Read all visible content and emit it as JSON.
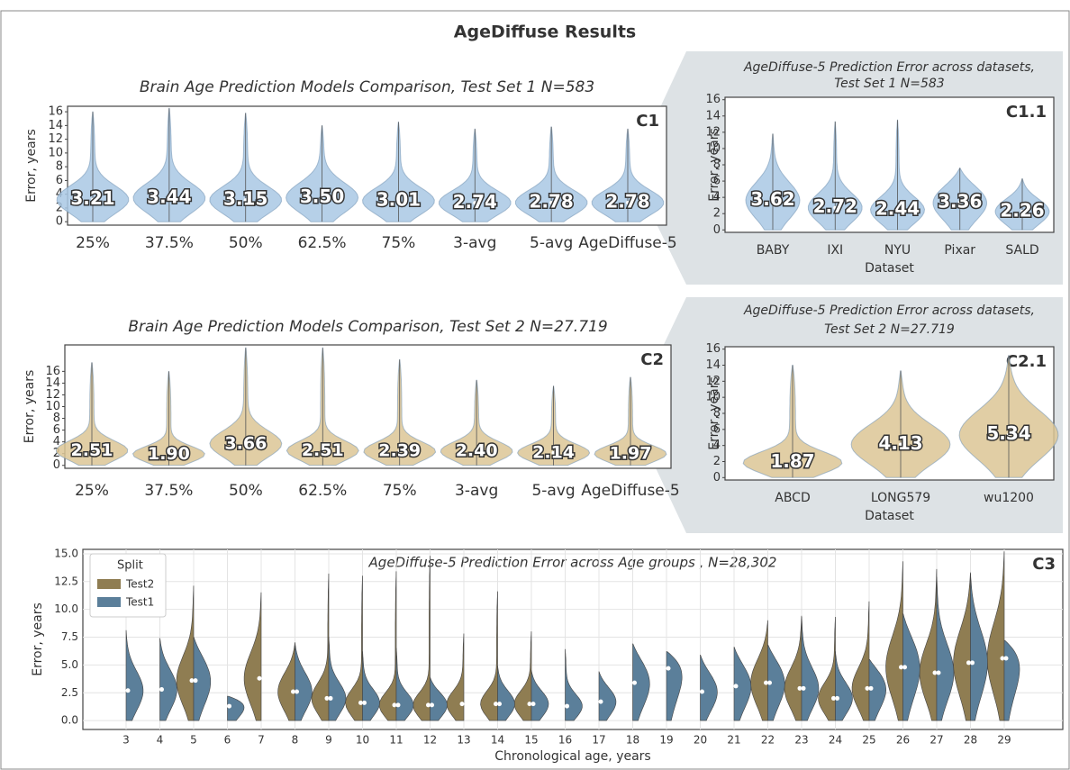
{
  "figure_title": "AgeDiffuse Results",
  "chart_data": [
    {
      "type": "violin",
      "panel": "C1",
      "title": [
        "Brain Age Prediction Models Comparison, Test Set 1 N=583"
      ],
      "ylabel": "Error, years",
      "categories": [
        "25%",
        "37.5%",
        "50%",
        "62.5%",
        "75%",
        "3-avg",
        "5-avg",
        "AgeDiffuse-5"
      ],
      "series": [
        {
          "color": "#a9c8e4",
          "values": [
            3.21,
            3.44,
            3.15,
            3.5,
            3.01,
            2.74,
            2.78,
            2.78
          ],
          "value_labels": [
            "3.21",
            "3.44",
            "3.15",
            "3.50",
            "3.01",
            "2.74",
            "2.78",
            "2.78"
          ],
          "max": [
            16,
            16.5,
            15.8,
            14,
            14.5,
            13.5,
            13.8,
            13.5
          ]
        }
      ],
      "ylim": [
        -0.5,
        16.8
      ],
      "yticks": [
        0,
        2,
        4,
        6,
        8,
        10,
        12,
        14,
        16
      ],
      "grid": false
    },
    {
      "type": "violin",
      "panel": "C1.1",
      "title": [
        "AgeDiffuse-5 Prediction Error across datasets,",
        "Test Set 1 N=583"
      ],
      "ylabel": "Error, years",
      "xlabel": "Dataset",
      "categories": [
        "BABY",
        "IXI",
        "NYU",
        "Pixar",
        "SALD"
      ],
      "series": [
        {
          "color": "#a9c8e4",
          "values": [
            3.62,
            2.72,
            2.44,
            3.36,
            2.26
          ],
          "value_labels": [
            "3.62",
            "2.72",
            "2.44",
            "3.36",
            "2.26"
          ],
          "max": [
            11.8,
            13.3,
            13.5,
            7.6,
            6.3
          ]
        }
      ],
      "ylim": [
        -0.3,
        16.3
      ],
      "yticks": [
        0,
        2,
        4,
        6,
        8,
        10,
        12,
        14,
        16
      ],
      "grid": false
    },
    {
      "type": "violin",
      "panel": "C2",
      "title": [
        "Brain Age Prediction Models Comparison, Test Set 2 N=27.719"
      ],
      "ylabel": "Error, years",
      "categories": [
        "25%",
        "37.5%",
        "50%",
        "62.5%",
        "75%",
        "3-avg",
        "5-avg",
        "AgeDiffuse-5"
      ],
      "series": [
        {
          "color": "#dcc695",
          "values": [
            2.51,
            1.9,
            3.66,
            2.51,
            2.39,
            2.4,
            2.14,
            1.97
          ],
          "value_labels": [
            "2.51",
            "1.90",
            "3.66",
            "2.51",
            "2.39",
            "2.40",
            "2.14",
            "1.97"
          ],
          "max": [
            17.5,
            16,
            20,
            20,
            18,
            14.5,
            13.5,
            15
          ]
        }
      ],
      "ylim": [
        -0.5,
        20.5
      ],
      "yticks": [
        0,
        2,
        4,
        6,
        8,
        10,
        12,
        14,
        16
      ],
      "grid": false
    },
    {
      "type": "violin",
      "panel": "C2.1",
      "title": [
        "AgeDiffuse-5 Prediction Error across datasets,",
        "Test Set 2 N=27.719"
      ],
      "ylabel": "Error, years",
      "xlabel": "Dataset",
      "categories": [
        "ABCD",
        "LONG579",
        "wu1200"
      ],
      "series": [
        {
          "color": "#dcc695",
          "values": [
            1.87,
            4.13,
            5.34
          ],
          "value_labels": [
            "1.87",
            "4.13",
            "5.34"
          ],
          "max": [
            14,
            13.3,
            15.2
          ]
        }
      ],
      "ylim": [
        -0.3,
        16.3
      ],
      "yticks": [
        0,
        2,
        4,
        6,
        8,
        10,
        12,
        14,
        16
      ],
      "grid": false
    },
    {
      "type": "split-violin",
      "panel": "C3",
      "title": [
        "AgeDiffuse-5 Prediction Error across Age groups , N=28,302"
      ],
      "ylabel": "Error, years",
      "xlabel": "Chronological age, years",
      "legend_title": "Split",
      "legend": "upper left",
      "categories": [
        "3",
        "4",
        "5",
        "6",
        "7",
        "8",
        "9",
        "10",
        "11",
        "12",
        "13",
        "14",
        "15",
        "16",
        "17",
        "18",
        "19",
        "20",
        "21",
        "22",
        "23",
        "24",
        "25",
        "26",
        "27",
        "28",
        "29"
      ],
      "series": [
        {
          "name": "Test2",
          "color": "#8f7d52",
          "values": [
            null,
            null,
            3.6,
            null,
            3.8,
            2.6,
            2,
            1.6,
            1.4,
            1.4,
            1.5,
            1.5,
            1.5,
            null,
            null,
            null,
            null,
            null,
            null,
            3.4,
            2.9,
            2,
            2.9,
            4.8,
            4.3,
            5.2,
            5.6
          ],
          "max": [
            null,
            null,
            12.1,
            null,
            11.5,
            7,
            13.2,
            13,
            13.4,
            14.8,
            7.8,
            11.6,
            8,
            null,
            null,
            null,
            null,
            null,
            null,
            9,
            9.4,
            9.3,
            10.7,
            14.3,
            13.6,
            13.3,
            15.2
          ]
        },
        {
          "name": "Test1",
          "color": "#5b7f9a",
          "values": [
            2.7,
            2.8,
            3.6,
            1.3,
            null,
            2.6,
            2,
            1.6,
            1.4,
            1.4,
            null,
            1.5,
            1.5,
            1.3,
            1.7,
            3.4,
            4.7,
            2.6,
            3.1,
            3.4,
            2.9,
            2,
            2.9,
            4.8,
            4.3,
            5.2,
            5.6
          ],
          "max": [
            8.1,
            7.4,
            7.5,
            2.2,
            null,
            7,
            7.5,
            6.2,
            6.5,
            3.9,
            null,
            4.9,
            4.5,
            6.4,
            4.4,
            6.9,
            6.2,
            5.9,
            6.6,
            6.8,
            9.3,
            6.2,
            5.5,
            9.6,
            12.9,
            13.2,
            7.2
          ]
        }
      ],
      "ylim": [
        -0.8,
        15.4
      ],
      "yticks": [
        {
          "value": 0,
          "label": "0.0"
        },
        {
          "value": 2.5,
          "label": "2.5"
        },
        {
          "value": 5,
          "label": "5.0"
        },
        {
          "value": 7.5,
          "label": "7.5"
        },
        {
          "value": 10,
          "label": "10.0"
        },
        {
          "value": 12.5,
          "label": "12.5"
        },
        {
          "value": 15,
          "label": "15.0"
        }
      ],
      "grid": true
    }
  ]
}
